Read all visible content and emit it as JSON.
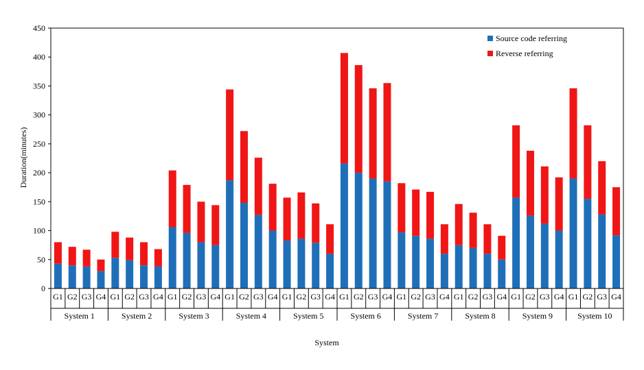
{
  "chart_data": {
    "type": "bar",
    "stacked": true,
    "title": "",
    "xlabel": "System",
    "ylabel": "Duration(minutes)",
    "ylim": [
      0,
      450
    ],
    "yticks": [
      0,
      50,
      100,
      150,
      200,
      250,
      300,
      350,
      400,
      450
    ],
    "grid": false,
    "legend_position": "top-right",
    "groups": [
      "System 1",
      "System 2",
      "System 3",
      "System 4",
      "System 5",
      "System 6",
      "System 7",
      "System 8",
      "System 9",
      "System 10"
    ],
    "subcategories": [
      "G1",
      "G2",
      "G3",
      "G4"
    ],
    "series": [
      {
        "name": "Source code referring",
        "color": "#1f6fb8",
        "values": [
          [
            43,
            40,
            38,
            30
          ],
          [
            53,
            49,
            40,
            38
          ],
          [
            106,
            96,
            80,
            75
          ],
          [
            187,
            148,
            127,
            100
          ],
          [
            83,
            86,
            79,
            60
          ],
          [
            216,
            200,
            190,
            185
          ],
          [
            97,
            91,
            86,
            60
          ],
          [
            75,
            70,
            60,
            50
          ],
          [
            157,
            126,
            112,
            100
          ],
          [
            190,
            155,
            128,
            92
          ]
        ]
      },
      {
        "name": "Reverse referring",
        "color": "#f01616",
        "values": [
          [
            37,
            32,
            29,
            20
          ],
          [
            45,
            39,
            40,
            30
          ],
          [
            98,
            83,
            70,
            69
          ],
          [
            157,
            124,
            99,
            81
          ],
          [
            74,
            80,
            68,
            51
          ],
          [
            191,
            186,
            156,
            170
          ],
          [
            85,
            80,
            81,
            51
          ],
          [
            71,
            61,
            51,
            41
          ],
          [
            125,
            112,
            99,
            92
          ],
          [
            156,
            127,
            92,
            83
          ]
        ]
      }
    ]
  }
}
